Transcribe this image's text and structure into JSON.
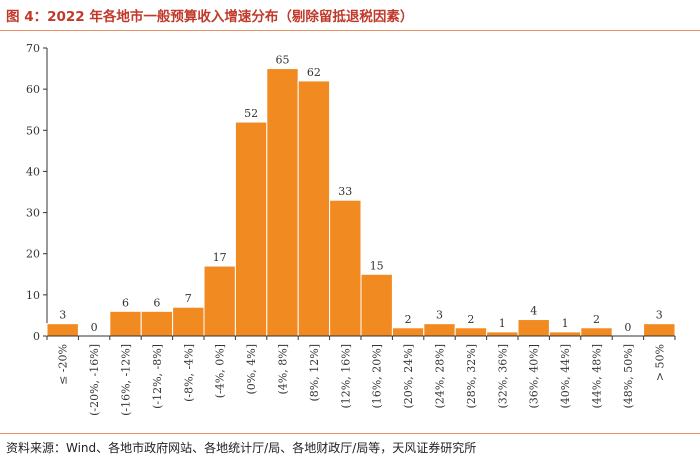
{
  "header": {
    "title": "图 4：2022 年各地市一般预算收入增速分布（剔除留抵退税因素）"
  },
  "footer": {
    "source": "资料来源：Wind、各地市政府网站、各地统计厅/局、各地财政厅/局等，天风证券研究所"
  },
  "colors": {
    "bar": "#f28a22",
    "bar_stroke": "#ffffff",
    "axis": "#333333",
    "rule": "#e88f63",
    "title": "#c0392b"
  },
  "chart_data": {
    "type": "bar",
    "title": "",
    "xlabel": "",
    "ylabel": "",
    "ylim": [
      0,
      70
    ],
    "yticks": [
      0,
      10,
      20,
      30,
      40,
      50,
      60,
      70
    ],
    "grid": false,
    "legend": "none",
    "categories": [
      "≤ -20%",
      "(-20%, -16%]",
      "(-16%, -12%]",
      "(-12%, -8%]",
      "(-8%, -4%]",
      "(-4%, 0%]",
      "(0%, 4%]",
      "(4%, 8%]",
      "(8%, 12%]",
      "(12%, 16%]",
      "(16%, 20%]",
      "(20%, 24%]",
      "(24%, 28%]",
      "(28%, 32%]",
      "(32%, 36%]",
      "(36%, 40%]",
      "(40%, 44%]",
      "(44%, 48%]",
      "(48%, 50%]",
      "> 50%"
    ],
    "values": [
      3,
      0,
      6,
      6,
      7,
      17,
      52,
      65,
      62,
      33,
      15,
      2,
      3,
      2,
      1,
      4,
      1,
      2,
      0,
      3
    ]
  }
}
